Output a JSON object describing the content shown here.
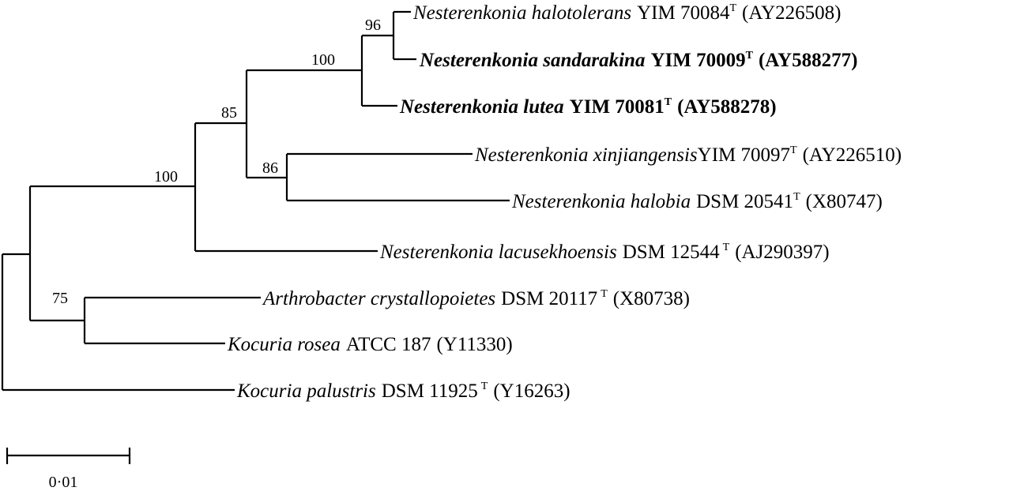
{
  "taxa": [
    {
      "id": "halotolerans",
      "species": "Nesterenkonia halotolerans",
      "strain": "YIM 70084",
      "type_mark": "T",
      "accession": "(AY226508)",
      "bold": false
    },
    {
      "id": "sandarakina",
      "species": "Nesterenkonia sandarakina",
      "strain": "YIM 70009",
      "type_mark": "T",
      "accession": "(AY588277)",
      "bold": true
    },
    {
      "id": "lutea",
      "species": "Nesterenkonia lutea",
      "strain": "YIM 70081",
      "type_mark": "T",
      "accession": "(AY588278)",
      "bold": true
    },
    {
      "id": "xinjiangensis",
      "species": "Nesterenkonia xinjiangensis",
      "strain": "YIM 70097",
      "type_mark": "T",
      "accession": "(AY226510)",
      "bold": false
    },
    {
      "id": "halobia",
      "species": "Nesterenkonia halobia",
      "strain": "DSM 20541",
      "type_mark": "T",
      "accession": "(X80747)",
      "bold": false
    },
    {
      "id": "lacusekhoensis",
      "species": "Nesterenkonia lacusekhoensis",
      "strain": "DSM 12544",
      "type_mark": "T",
      "accession": "(AJ290397)",
      "bold": false
    },
    {
      "id": "crystallopoietes",
      "species": "Arthrobacter crystallopoietes",
      "strain": "DSM 20117",
      "type_mark": "T",
      "accession": "(X80738)",
      "bold": false
    },
    {
      "id": "rosea",
      "species": "Kocuria rosea",
      "strain": "ATCC 187",
      "type_mark": "",
      "accession": "(Y11330)",
      "bold": false
    },
    {
      "id": "palustris",
      "species": "Kocuria palustris",
      "strain": "DSM 11925",
      "type_mark": "T",
      "accession": "(Y16263)",
      "bold": false
    }
  ],
  "bootstrap": {
    "halotolerans_sandarakina": "96",
    "nesterenkonia_core": "100",
    "nesterenkonia_inner": "85",
    "xinjiangensis_halobia": "86",
    "nesterenkonia_all": "100",
    "arthrobacter_kocuria": "75"
  },
  "scale_bar": {
    "label": "0·01"
  }
}
